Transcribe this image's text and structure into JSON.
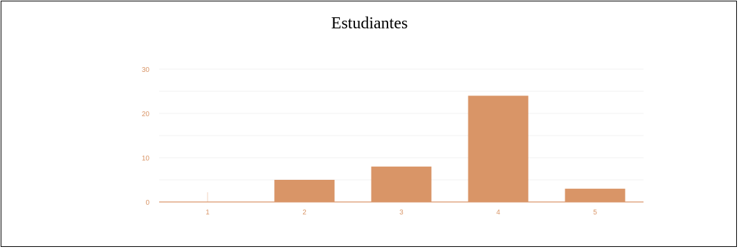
{
  "page": {
    "title": "Estudiantes"
  },
  "chart_data": {
    "type": "bar",
    "title": "Estudiantes",
    "xlabel": "",
    "ylabel": "",
    "categories": [
      "1",
      "2",
      "3",
      "4",
      "5"
    ],
    "values": [
      0,
      5,
      8,
      24,
      3
    ],
    "ylim": [
      0,
      30
    ],
    "yticks": [
      0,
      10,
      20,
      30
    ],
    "grid": true,
    "legend": "none",
    "colors": {
      "bar": "#d99567",
      "axis": "#d99567",
      "tick_text": "#d99567",
      "grid": "#f1f1f1"
    }
  }
}
